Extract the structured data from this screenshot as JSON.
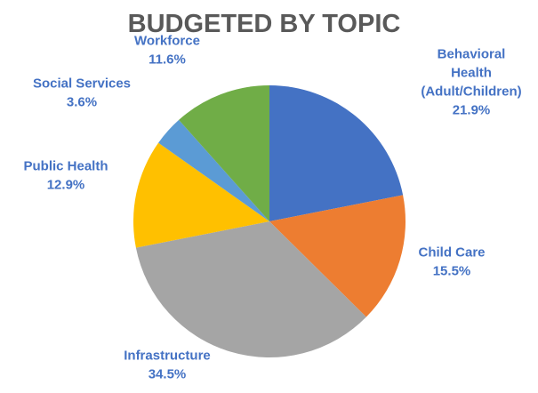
{
  "chart_data": {
    "type": "pie",
    "title": "BUDGETED BY TOPIC",
    "start_angle_deg": 0,
    "direction": "clockwise",
    "slices": [
      {
        "name": "Behavioral Health (Adult/Children)",
        "label_lines": [
          "Behavioral",
          "Health",
          "(Adult/Children)"
        ],
        "value": 21.9,
        "percent_label": "21.9%",
        "color": "#4472c4"
      },
      {
        "name": "Child Care",
        "label_lines": [
          "Child Care"
        ],
        "value": 15.5,
        "percent_label": "15.5%",
        "color": "#ed7d31"
      },
      {
        "name": "Infrastructure",
        "label_lines": [
          "Infrastructure"
        ],
        "value": 34.5,
        "percent_label": "34.5%",
        "color": "#a5a5a5"
      },
      {
        "name": "Public Health",
        "label_lines": [
          "Public Health"
        ],
        "value": 12.9,
        "percent_label": "12.9%",
        "color": "#ffc000"
      },
      {
        "name": "Social Services",
        "label_lines": [
          "Social Services"
        ],
        "value": 3.6,
        "percent_label": "3.6%",
        "color": "#5b9bd5"
      },
      {
        "name": "Workforce",
        "label_lines": [
          "Workforce"
        ],
        "value": 11.6,
        "percent_label": "11.6%",
        "color": "#70ad47"
      }
    ],
    "label_color": "#4472c4",
    "title_color": "#595959",
    "legend": "none"
  }
}
